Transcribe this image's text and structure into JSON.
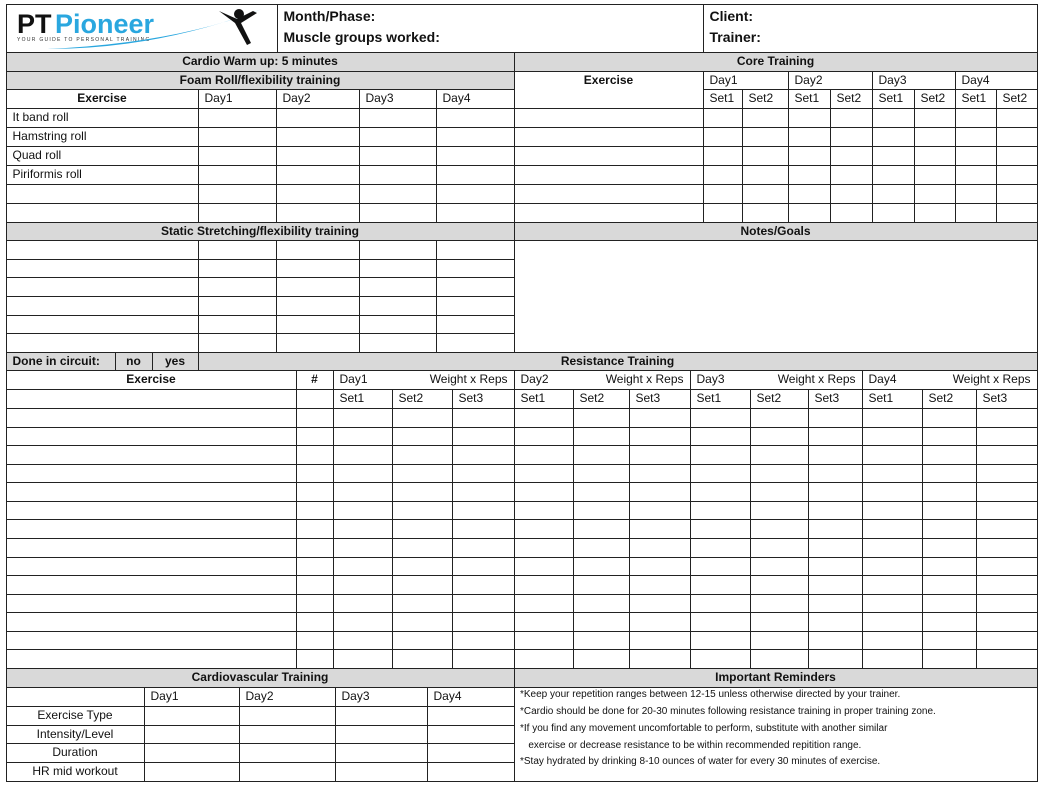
{
  "logo": {
    "brand_pt": "PT",
    "brand_pioneer": "Pioneer",
    "tagline": "YOUR GUIDE TO PERSONAL TRAINING",
    "colors": {
      "pt": "#111111",
      "pioneer": "#2aa7df"
    }
  },
  "header": {
    "month_phase": "Month/Phase:",
    "muscle_groups": "Muscle groups worked:",
    "client": "Client:",
    "trainer": "Trainer:"
  },
  "cardio_warmup": "Cardio Warm up: 5 minutes",
  "foam_roll": {
    "title": "Foam Roll/flexibility training",
    "columns": [
      "Exercise",
      "Day1",
      "Day2",
      "Day3",
      "Day4"
    ],
    "exercises": [
      "It band roll",
      "Hamstring roll",
      "Quad roll",
      "Piriformis roll",
      "",
      ""
    ]
  },
  "core": {
    "title": "Core Training",
    "exercise_label": "Exercise",
    "days": [
      "Day1",
      "Day2",
      "Day3",
      "Day4"
    ],
    "sets": [
      "Set1",
      "Set2"
    ]
  },
  "static_stretching": {
    "title": "Static Stretching/flexibility training"
  },
  "notes": {
    "title": "Notes/Goals"
  },
  "circuit": {
    "label": "Done in circuit:",
    "no": "no",
    "yes": "yes"
  },
  "resistance": {
    "title": "Resistance Training",
    "exercise_label": "Exercise",
    "number_label": "#",
    "days": [
      "Day1",
      "Day2",
      "Day3",
      "Day4"
    ],
    "weight_label": "Weight x Reps",
    "sets": [
      "Set1",
      "Set2",
      "Set3"
    ]
  },
  "cardio": {
    "title": "Cardiovascular Training",
    "days": [
      "Day1",
      "Day2",
      "Day3",
      "Day4"
    ],
    "rows": [
      "Exercise Type",
      "Intensity/Level",
      "Duration",
      "HR mid workout"
    ]
  },
  "reminders": {
    "title": "Important Reminders",
    "items": [
      "*Keep your repetition ranges between 12-15 unless otherwise directed by your trainer.",
      "*Cardio should be done for 20-30 minutes following resistance training in proper training zone.",
      "*If you find any movement uncomfortable to perform, substitute with another similar",
      "   exercise or decrease resistance to be within recommended repitition range.",
      "*Stay hydrated by drinking 8-10 ounces of water for every 30 minutes of exercise."
    ]
  },
  "colors": {
    "header_gray": "#d9d9d9",
    "border": "#222222"
  }
}
